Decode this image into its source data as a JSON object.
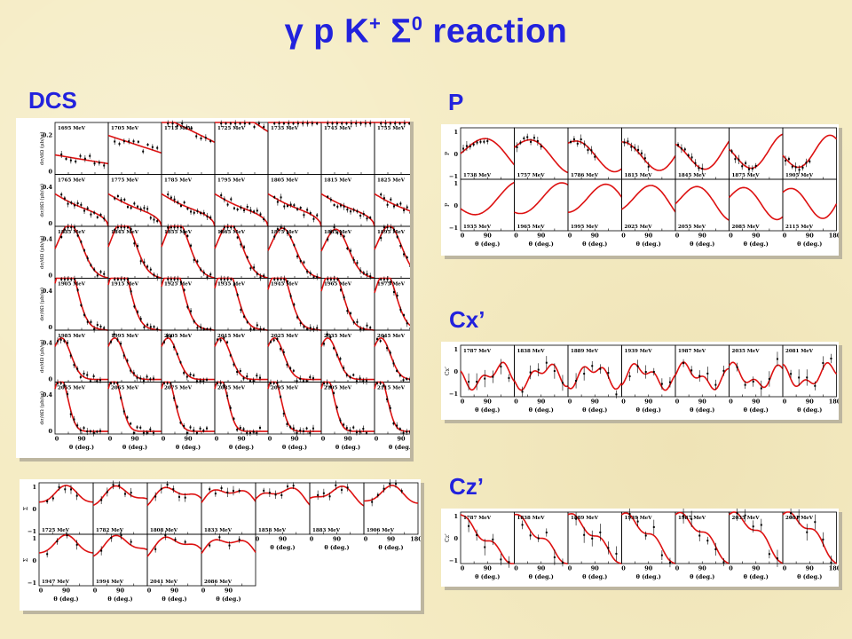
{
  "page": {
    "title_main": "γ p  K",
    "title_arrow": "→",
    "title_sup1": "+",
    "title_mid": " Σ",
    "title_sup2": "0",
    "title_end": " reaction",
    "labels": {
      "dcs": "DCS",
      "p": "P",
      "cx": "Cx’",
      "cz": "Cz’",
      "sigma": "Σ"
    }
  },
  "colors": {
    "title": "#2222dd",
    "theory_line": "#dd1111",
    "data_points": "#000000",
    "background": "#f5ecc4"
  },
  "axis_text": {
    "theta_label": "θ (deg.)",
    "x_ticks": [
      "0",
      "90",
      "180"
    ],
    "dcs_ylabel": "dσ/dΩ (μb/sr)",
    "p_ylabel": "P",
    "cx_ylabel": "Cx’",
    "cz_ylabel": "Cz’",
    "sigma_ylabel": "Σ"
  },
  "chart_data": [
    {
      "type": "scatter",
      "panel": "DCS",
      "grid": {
        "rows": 6,
        "cols": 7
      },
      "xlim": [
        0,
        180
      ],
      "row_ylim": [
        [
          0,
          0.2
        ],
        [
          0,
          0.4
        ],
        [
          0,
          0.4
        ],
        [
          0,
          0.4
        ],
        [
          0,
          0.4
        ],
        [
          0,
          0.4
        ]
      ],
      "row_yticks": [
        [
          "0",
          "0.2"
        ],
        [
          "0",
          "0.4"
        ],
        [
          "0",
          "0.4"
        ],
        [
          "0",
          "0.4"
        ],
        [
          "0",
          "0.4"
        ],
        [
          "0",
          "0.4"
        ]
      ],
      "energies": [
        "1695 MeV",
        "1705 MeV",
        "1715 MeV",
        "1725 MeV",
        "1735 MeV",
        "1745 MeV",
        "1755 MeV",
        "1765 MeV",
        "1775 MeV",
        "1785 MeV",
        "1795 MeV",
        "1805 MeV",
        "1815 MeV",
        "1825 MeV",
        "1835 MeV",
        "1845 MeV",
        "1855 MeV",
        "1865 MeV",
        "1875 MeV",
        "1885 MeV",
        "1895 MeV",
        "1905 MeV",
        "1915 MeV",
        "1925 MeV",
        "1935 MeV",
        "1945 MeV",
        "1965 MeV",
        "1975 MeV",
        "1985 MeV",
        "1995 MeV",
        "2005 MeV",
        "2015 MeV",
        "2025 MeV",
        "2035 MeV",
        "2045 MeV",
        "2055 MeV",
        "2065 MeV",
        "2075 MeV",
        "2085 MeV",
        "2095 MeV",
        "2105 MeV",
        "2115 MeV"
      ]
    },
    {
      "type": "scatter",
      "panel": "P",
      "grid": {
        "rows": 2,
        "cols": 7
      },
      "xlim": [
        0,
        180
      ],
      "ylim": [
        -1,
        1
      ],
      "yticks": [
        "1",
        "0",
        "−1"
      ],
      "energies": [
        "1738 MeV",
        "1757 MeV",
        "1786 MeV",
        "1815 MeV",
        "1845 MeV",
        "1875 MeV",
        "1905 MeV",
        "1935 MeV",
        "1965 MeV",
        "1995 MeV",
        "2025 MeV",
        "2055 MeV",
        "2085 MeV",
        "2115 MeV"
      ]
    },
    {
      "type": "scatter",
      "panel": "Cx’",
      "grid": {
        "rows": 1,
        "cols": 7
      },
      "xlim": [
        0,
        180
      ],
      "ylim": [
        -1,
        1
      ],
      "yticks": [
        "1",
        "0",
        "−1"
      ],
      "energies": [
        "1787 MeV",
        "1838 MeV",
        "1889 MeV",
        "1939 MeV",
        "1987 MeV",
        "2035 MeV",
        "2081 MeV"
      ]
    },
    {
      "type": "scatter",
      "panel": "Cz’",
      "grid": {
        "rows": 1,
        "cols": 7
      },
      "xlim": [
        0,
        180
      ],
      "ylim": [
        -1,
        1
      ],
      "yticks": [
        "1",
        "0",
        "−1"
      ],
      "energies": [
        "1787 MeV",
        "1838 MeV",
        "1889 MeV",
        "1939 MeV",
        "1987 MeV",
        "2035 MeV",
        "2081 MeV"
      ]
    },
    {
      "type": "scatter",
      "panel": "Σ",
      "grid": {
        "rows": 2,
        "cols": 7
      },
      "xlim": [
        0,
        180
      ],
      "ylim": [
        -1,
        1
      ],
      "yticks": [
        "1",
        "0",
        "−1"
      ],
      "energies": [
        "1725 MeV",
        "1782 MeV",
        "1808 MeV",
        "1833 MeV",
        "1858 MeV",
        "1883 MeV",
        "1906 MeV",
        "1947 MeV",
        "1994 MeV",
        "2041 MeV",
        "2086 MeV"
      ]
    }
  ]
}
